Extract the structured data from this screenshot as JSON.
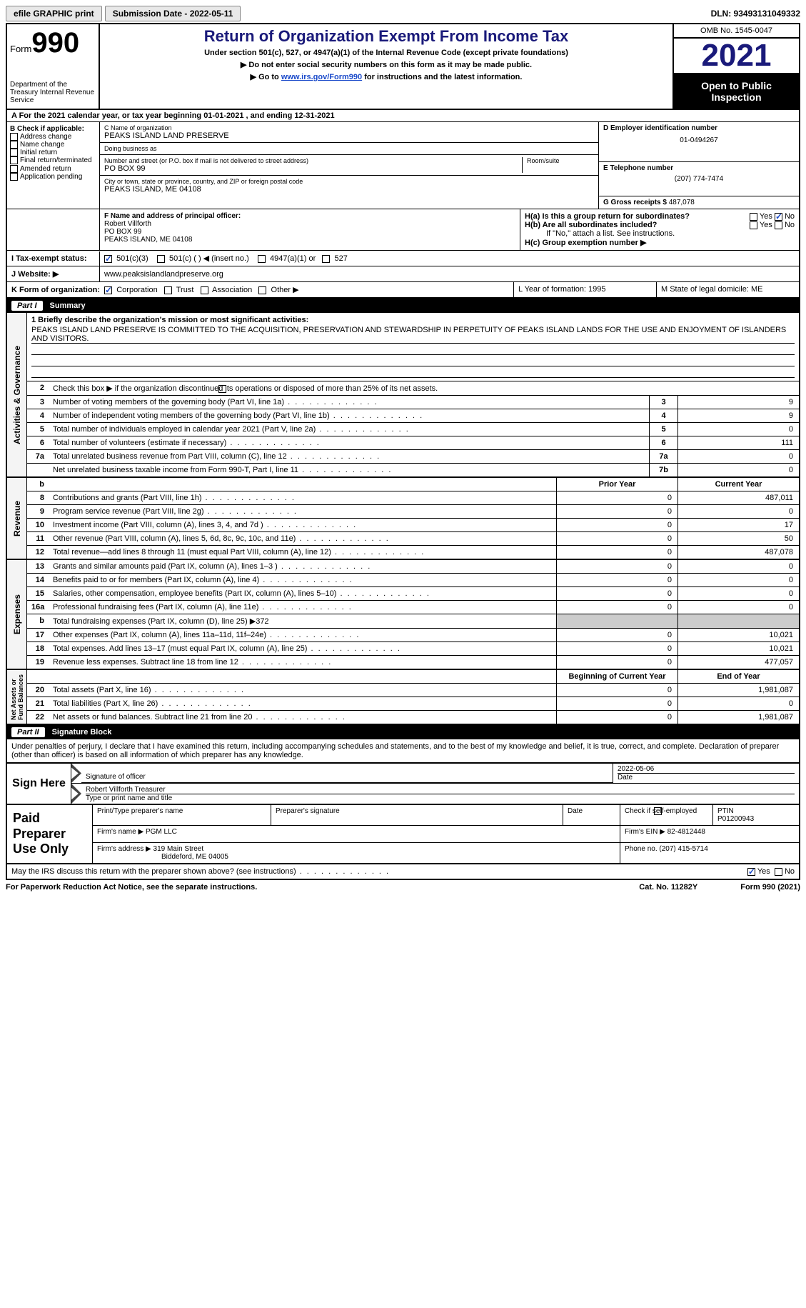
{
  "topbar": {
    "efile": "efile GRAPHIC print",
    "submission": "Submission Date - 2022-05-11",
    "dln": "DLN: 93493131049332"
  },
  "header": {
    "form_word": "Form",
    "form_num": "990",
    "dept": "Department of the Treasury\nInternal Revenue Service",
    "title": "Return of Organization Exempt From Income Tax",
    "sub": "Under section 501(c), 527, or 4947(a)(1) of the Internal Revenue Code (except private foundations)",
    "note1": "▶ Do not enter social security numbers on this form as it may be made public.",
    "note2_pre": "▶ Go to ",
    "note2_link": "www.irs.gov/Form990",
    "note2_post": " for instructions and the latest information.",
    "omb": "OMB No. 1545-0047",
    "year": "2021",
    "otp": "Open to Public Inspection"
  },
  "rowA": "A For the 2021 calendar year, or tax year beginning 01-01-2021   , and ending 12-31-2021",
  "boxB": {
    "title": "B Check if applicable:",
    "opts": [
      "Address change",
      "Name change",
      "Initial return",
      "Final return/terminated",
      "Amended return",
      "Application pending"
    ]
  },
  "boxC": {
    "name_lbl": "C Name of organization",
    "name": "PEAKS ISLAND LAND PRESERVE",
    "dba_lbl": "Doing business as",
    "dba": "",
    "addr_lbl": "Number and street (or P.O. box if mail is not delivered to street address)",
    "room_lbl": "Room/suite",
    "addr": "PO BOX 99",
    "city_lbl": "City or town, state or province, country, and ZIP or foreign postal code",
    "city": "PEAKS ISLAND, ME  04108"
  },
  "boxD": {
    "lbl": "D Employer identification number",
    "val": "01-0494267"
  },
  "boxE": {
    "lbl": "E Telephone number",
    "val": "(207) 774-7474"
  },
  "boxG": {
    "lbl": "G Gross receipts $",
    "val": "487,078"
  },
  "boxF": {
    "lbl": "F  Name and address of principal officer:",
    "name": "Robert Villforth",
    "addr": "PO BOX 99",
    "city": "PEAKS ISLAND, ME  04108"
  },
  "boxH": {
    "a": "H(a)  Is this a group return for subordinates?",
    "b": "H(b)  Are all subordinates included?",
    "bnote": "If \"No,\" attach a list. See instructions.",
    "c": "H(c)  Group exemption number ▶"
  },
  "rowI": {
    "lbl": "I  Tax-exempt status:",
    "o1": "501(c)(3)",
    "o2": "501(c) (  ) ◀ (insert no.)",
    "o3": "4947(a)(1) or",
    "o4": "527"
  },
  "rowJ": {
    "lbl": "J  Website: ▶",
    "val": "www.peaksislandlandpreserve.org"
  },
  "rowK": {
    "lbl": "K Form of organization:",
    "o1": "Corporation",
    "o2": "Trust",
    "o3": "Association",
    "o4": "Other ▶",
    "L": "L Year of formation: 1995",
    "M": "M State of legal domicile: ME"
  },
  "part1": {
    "tag": "Part I",
    "title": "Summary"
  },
  "mission": {
    "prompt": "1   Briefly describe the organization's mission or most significant activities:",
    "text": "PEAKS ISLAND LAND PRESERVE IS COMMITTED TO THE ACQUISITION, PRESERVATION AND STEWARDSHIP IN PERPETUITY OF PEAKS ISLAND LANDS FOR THE USE AND ENJOYMENT OF ISLANDERS AND VISITORS."
  },
  "line2": "Check this box ▶      if the organization discontinued its operations or disposed of more than 25% of its net assets.",
  "governance_rows": [
    {
      "n": "3",
      "t": "Number of voting members of the governing body (Part VI, line 1a)",
      "b": "3",
      "v": "9"
    },
    {
      "n": "4",
      "t": "Number of independent voting members of the governing body (Part VI, line 1b)",
      "b": "4",
      "v": "9"
    },
    {
      "n": "5",
      "t": "Total number of individuals employed in calendar year 2021 (Part V, line 2a)",
      "b": "5",
      "v": "0"
    },
    {
      "n": "6",
      "t": "Total number of volunteers (estimate if necessary)",
      "b": "6",
      "v": "111"
    },
    {
      "n": "7a",
      "t": "Total unrelated business revenue from Part VIII, column (C), line 12",
      "b": "7a",
      "v": "0"
    },
    {
      "n": "",
      "t": "Net unrelated business taxable income from Form 990-T, Part I, line 11",
      "b": "7b",
      "v": "0"
    }
  ],
  "col_hdrs": {
    "prior": "Prior Year",
    "current": "Current Year"
  },
  "revenue_rows": [
    {
      "n": "8",
      "t": "Contributions and grants (Part VIII, line 1h)",
      "p": "0",
      "c": "487,011"
    },
    {
      "n": "9",
      "t": "Program service revenue (Part VIII, line 2g)",
      "p": "0",
      "c": "0"
    },
    {
      "n": "10",
      "t": "Investment income (Part VIII, column (A), lines 3, 4, and 7d )",
      "p": "0",
      "c": "17"
    },
    {
      "n": "11",
      "t": "Other revenue (Part VIII, column (A), lines 5, 6d, 8c, 9c, 10c, and 11e)",
      "p": "0",
      "c": "50"
    },
    {
      "n": "12",
      "t": "Total revenue—add lines 8 through 11 (must equal Part VIII, column (A), line 12)",
      "p": "0",
      "c": "487,078"
    }
  ],
  "expense_rows": [
    {
      "n": "13",
      "t": "Grants and similar amounts paid (Part IX, column (A), lines 1–3 )",
      "p": "0",
      "c": "0"
    },
    {
      "n": "14",
      "t": "Benefits paid to or for members (Part IX, column (A), line 4)",
      "p": "0",
      "c": "0"
    },
    {
      "n": "15",
      "t": "Salaries, other compensation, employee benefits (Part IX, column (A), lines 5–10)",
      "p": "0",
      "c": "0"
    },
    {
      "n": "16a",
      "t": "Professional fundraising fees (Part IX, column (A), line 11e)",
      "p": "0",
      "c": "0"
    },
    {
      "n": "b",
      "t": "Total fundraising expenses (Part IX, column (D), line 25) ▶372",
      "p": "",
      "c": "",
      "grey": true
    },
    {
      "n": "17",
      "t": "Other expenses (Part IX, column (A), lines 11a–11d, 11f–24e)",
      "p": "0",
      "c": "10,021"
    },
    {
      "n": "18",
      "t": "Total expenses. Add lines 13–17 (must equal Part IX, column (A), line 25)",
      "p": "0",
      "c": "10,021"
    },
    {
      "n": "19",
      "t": "Revenue less expenses. Subtract line 18 from line 12",
      "p": "0",
      "c": "477,057"
    }
  ],
  "net_hdrs": {
    "begin": "Beginning of Current Year",
    "end": "End of Year"
  },
  "net_rows": [
    {
      "n": "20",
      "t": "Total assets (Part X, line 16)",
      "p": "0",
      "c": "1,981,087"
    },
    {
      "n": "21",
      "t": "Total liabilities (Part X, line 26)",
      "p": "0",
      "c": "0"
    },
    {
      "n": "22",
      "t": "Net assets or fund balances. Subtract line 21 from line 20",
      "p": "0",
      "c": "1,981,087"
    }
  ],
  "part2": {
    "tag": "Part II",
    "title": "Signature Block"
  },
  "sig_intro": "Under penalties of perjury, I declare that I have examined this return, including accompanying schedules and statements, and to the best of my knowledge and belief, it is true, correct, and complete. Declaration of preparer (other than officer) is based on all information of which preparer has any knowledge.",
  "sign": {
    "label": "Sign Here",
    "sig_lbl": "Signature of officer",
    "date": "2022-05-06",
    "date_lbl": "Date",
    "name": "Robert Villforth  Treasurer",
    "name_lbl": "Type or print name and title"
  },
  "prep": {
    "label": "Paid Preparer Use Only",
    "r1": {
      "c1": "Print/Type preparer's name",
      "c2": "Preparer's signature",
      "c3": "Date",
      "c4": "Check       if self-employed",
      "c5": "PTIN",
      "c5v": "P01200943"
    },
    "r2": {
      "c1": "Firm's name    ▶",
      "c1v": "PGM LLC",
      "c2": "Firm's EIN ▶",
      "c2v": "82-4812448"
    },
    "r3": {
      "c1": "Firm's address ▶",
      "c1v": "319 Main Street",
      "c1v2": "Biddeford, ME  04005",
      "c2": "Phone no.",
      "c2v": "(207) 415-5714"
    }
  },
  "discuss": "May the IRS discuss this return with the preparer shown above? (see instructions)",
  "footer": {
    "l": "For Paperwork Reduction Act Notice, see the separate instructions.",
    "m": "Cat. No. 11282Y",
    "r": "Form 990 (2021)"
  },
  "yn": {
    "yes": "Yes",
    "no": "No"
  }
}
